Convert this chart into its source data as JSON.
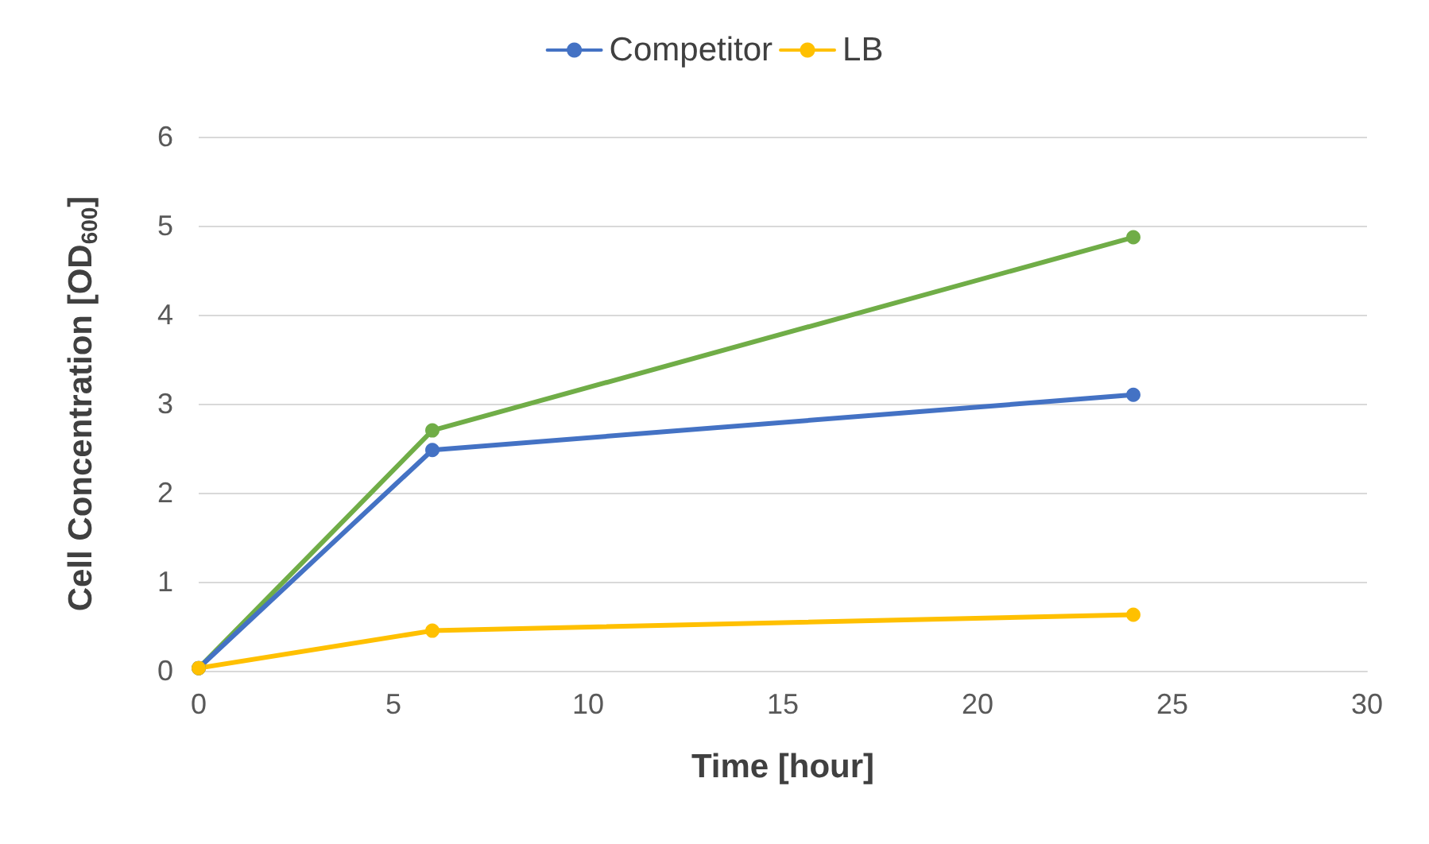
{
  "chart_data": {
    "type": "line",
    "xlabel": "Time [hour]",
    "ylabel": "Cell Concentration [OD$_{600}$]",
    "x": [
      0,
      6,
      24
    ],
    "series": [
      {
        "color": "#70ad47",
        "values": [
          0.03,
          2.7,
          4.87
        ]
      },
      {
        "name": "Competitor",
        "color": "#4472c4",
        "values": [
          0.03,
          2.48,
          3.1
        ]
      },
      {
        "name": "LB",
        "color": "#ffc000",
        "values": [
          0.03,
          0.45,
          0.63
        ]
      }
    ],
    "xlim": [
      0,
      30
    ],
    "xticks": [
      0,
      5,
      10,
      15,
      20,
      25,
      30
    ],
    "ylim": [
      0,
      6
    ],
    "yticks": [
      0,
      1,
      2,
      3,
      4,
      5,
      6
    ],
    "grid": "y",
    "legend": "top",
    "marker": "circle",
    "line_style": "solid"
  }
}
